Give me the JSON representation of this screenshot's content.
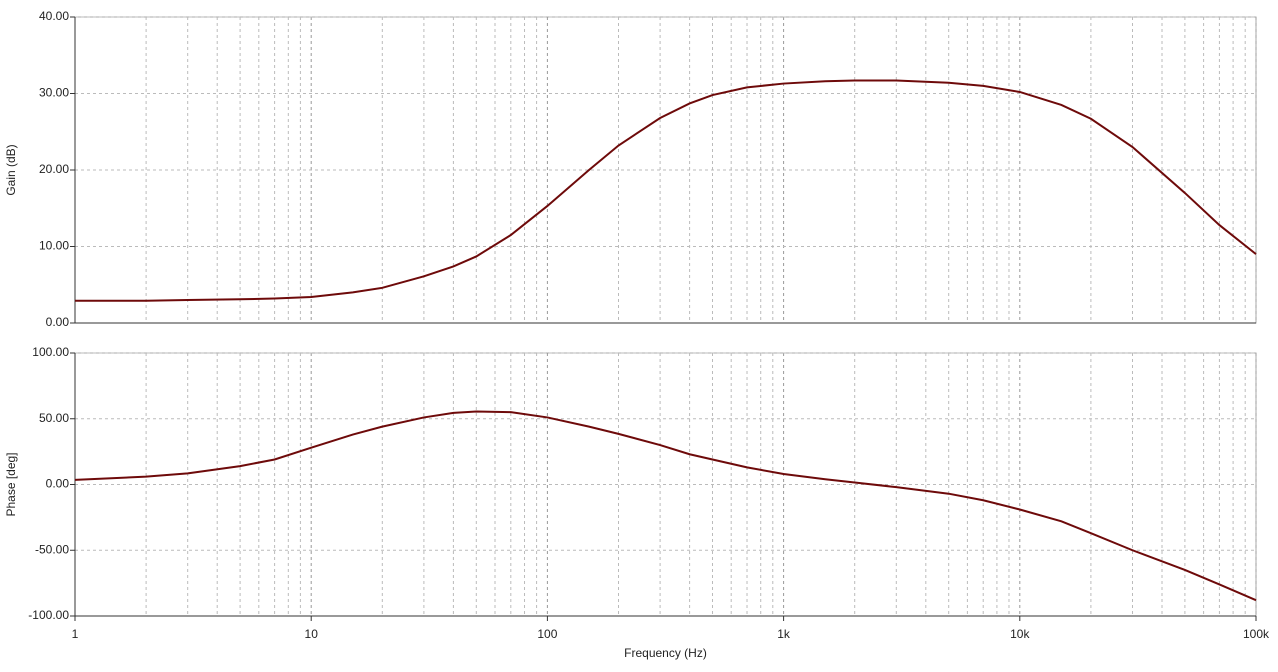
{
  "chart_data": [
    {
      "type": "line",
      "y_label": "Gain (dB)",
      "log_x": true,
      "grid": true,
      "color": "#6e0a0a",
      "x": [
        1,
        2,
        3,
        5,
        7,
        10,
        15,
        20,
        30,
        40,
        50,
        70,
        100,
        150,
        200,
        300,
        400,
        500,
        700,
        1000,
        1500,
        2000,
        3000,
        5000,
        7000,
        10000,
        15000,
        20000,
        30000,
        50000,
        70000,
        100000
      ],
      "values": [
        2.9,
        2.9,
        3.0,
        3.1,
        3.2,
        3.4,
        4.0,
        4.6,
        6.1,
        7.4,
        8.7,
        11.5,
        15.3,
        20.0,
        23.2,
        26.8,
        28.7,
        29.8,
        30.8,
        31.3,
        31.6,
        31.7,
        31.7,
        31.4,
        31.0,
        30.2,
        28.5,
        26.7,
        23.0,
        17.0,
        12.8,
        9.0
      ],
      "xlim": [
        1,
        100000
      ],
      "ylim": [
        0,
        40
      ],
      "yticks": [
        {
          "value": 0,
          "label": "0.00"
        },
        {
          "value": 10,
          "label": "10.00"
        },
        {
          "value": 20,
          "label": "20.00"
        },
        {
          "value": 30,
          "label": "30.00"
        },
        {
          "value": 40,
          "label": "40.00"
        }
      ]
    },
    {
      "type": "line",
      "y_label": "Phase [deg]",
      "x_label": "Frequency (Hz)",
      "log_x": true,
      "grid": true,
      "color": "#6e0a0a",
      "x": [
        1,
        2,
        3,
        5,
        7,
        10,
        15,
        20,
        30,
        40,
        50,
        70,
        100,
        150,
        200,
        300,
        400,
        500,
        700,
        1000,
        1500,
        2000,
        3000,
        5000,
        7000,
        10000,
        15000,
        20000,
        30000,
        50000,
        70000,
        100000
      ],
      "values": [
        3.5,
        6,
        8.5,
        14,
        19,
        28,
        38,
        44,
        51,
        54.5,
        55.5,
        55,
        51,
        44,
        38.5,
        30,
        23,
        19,
        13,
        8,
        4,
        1.5,
        -2,
        -7,
        -12,
        -19,
        -28,
        -37,
        -50,
        -65,
        -76,
        -88
      ],
      "xlim": [
        1,
        100000
      ],
      "ylim": [
        -100,
        100
      ],
      "xticks": [
        1,
        10,
        100,
        {
          "value": 1000,
          "label": "1k"
        },
        {
          "value": 10000,
          "label": "10k"
        },
        {
          "value": 100000,
          "label": "100k"
        }
      ],
      "yticks": [
        {
          "value": -100,
          "label": "-100.00"
        },
        {
          "value": -50,
          "label": "-50.00"
        },
        {
          "value": 0,
          "label": "0.00"
        },
        {
          "value": 50,
          "label": "50.00"
        },
        {
          "value": 100,
          "label": "100.00"
        }
      ]
    }
  ]
}
